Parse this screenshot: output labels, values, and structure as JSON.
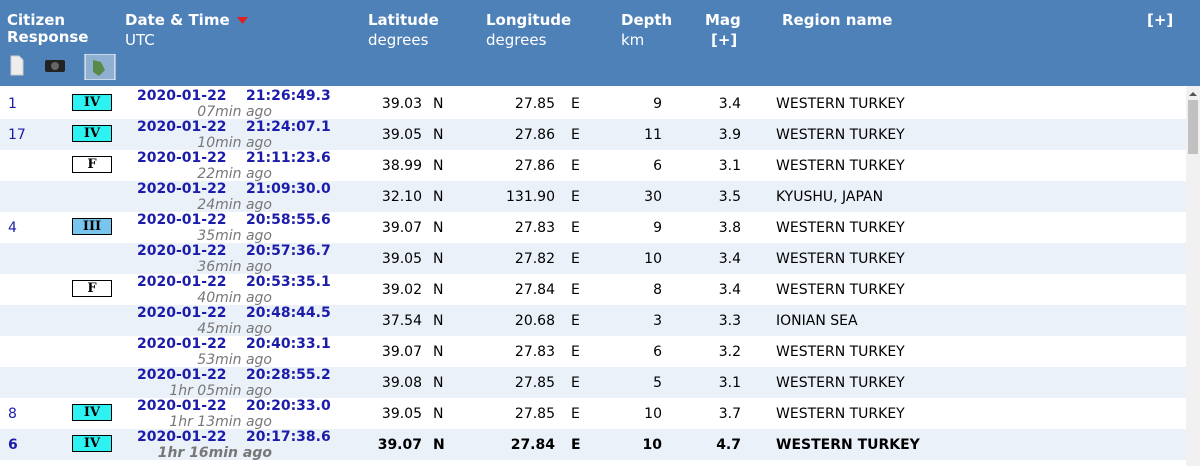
{
  "header": {
    "citizen_response": [
      "Citizen",
      "Response"
    ],
    "date_time": "Date & Time",
    "utc": "UTC",
    "latitude": "Latitude",
    "lat_unit": "degrees",
    "longitude": "Longitude",
    "lon_unit": "degrees",
    "depth": "Depth",
    "depth_unit": "km",
    "mag": "Mag",
    "mag_more": "[+]",
    "region": "Region name",
    "more": "[+]"
  },
  "rows": [
    {
      "responses": "1",
      "intensity": "IV",
      "date": "2020-01-22",
      "time": "21:26:49.3",
      "ago": "07min ago",
      "lat": "39.03",
      "lat_dir": "N",
      "lon": "27.85",
      "lon_dir": "E",
      "depth": "9",
      "mag": "3.4",
      "region": "WESTERN TURKEY"
    },
    {
      "responses": "17",
      "intensity": "IV",
      "date": "2020-01-22",
      "time": "21:24:07.1",
      "ago": "10min ago",
      "lat": "39.05",
      "lat_dir": "N",
      "lon": "27.86",
      "lon_dir": "E",
      "depth": "11",
      "mag": "3.9",
      "region": "WESTERN TURKEY"
    },
    {
      "intensity": "F",
      "date": "2020-01-22",
      "time": "21:11:23.6",
      "ago": "22min ago",
      "lat": "38.99",
      "lat_dir": "N",
      "lon": "27.86",
      "lon_dir": "E",
      "depth": "6",
      "mag": "3.1",
      "region": "WESTERN TURKEY"
    },
    {
      "date": "2020-01-22",
      "time": "21:09:30.0",
      "ago": "24min ago",
      "lat": "32.10",
      "lat_dir": "N",
      "lon": "131.90",
      "lon_dir": "E",
      "depth": "30",
      "mag": "3.5",
      "region": "KYUSHU, JAPAN"
    },
    {
      "responses": "4",
      "intensity": "III",
      "date": "2020-01-22",
      "time": "20:58:55.6",
      "ago": "35min ago",
      "lat": "39.07",
      "lat_dir": "N",
      "lon": "27.83",
      "lon_dir": "E",
      "depth": "9",
      "mag": "3.8",
      "region": "WESTERN TURKEY"
    },
    {
      "date": "2020-01-22",
      "time": "20:57:36.7",
      "ago": "36min ago",
      "lat": "39.05",
      "lat_dir": "N",
      "lon": "27.82",
      "lon_dir": "E",
      "depth": "10",
      "mag": "3.4",
      "region": "WESTERN TURKEY"
    },
    {
      "intensity": "F",
      "date": "2020-01-22",
      "time": "20:53:35.1",
      "ago": "40min ago",
      "lat": "39.02",
      "lat_dir": "N",
      "lon": "27.84",
      "lon_dir": "E",
      "depth": "8",
      "mag": "3.4",
      "region": "WESTERN TURKEY"
    },
    {
      "date": "2020-01-22",
      "time": "20:48:44.5",
      "ago": "45min ago",
      "lat": "37.54",
      "lat_dir": "N",
      "lon": "20.68",
      "lon_dir": "E",
      "depth": "3",
      "mag": "3.3",
      "region": "IONIAN SEA"
    },
    {
      "date": "2020-01-22",
      "time": "20:40:33.1",
      "ago": "53min ago",
      "lat": "39.07",
      "lat_dir": "N",
      "lon": "27.83",
      "lon_dir": "E",
      "depth": "6",
      "mag": "3.2",
      "region": "WESTERN TURKEY"
    },
    {
      "date": "2020-01-22",
      "time": "20:28:55.2",
      "ago": "1hr 05min ago",
      "lat": "39.08",
      "lat_dir": "N",
      "lon": "27.85",
      "lon_dir": "E",
      "depth": "5",
      "mag": "3.1",
      "region": "WESTERN TURKEY"
    },
    {
      "responses": "8",
      "intensity": "IV",
      "date": "2020-01-22",
      "time": "20:20:33.0",
      "ago": "1hr 13min ago",
      "lat": "39.05",
      "lat_dir": "N",
      "lon": "27.85",
      "lon_dir": "E",
      "depth": "10",
      "mag": "3.7",
      "region": "WESTERN TURKEY"
    },
    {
      "responses": "6",
      "intensity": "IV",
      "date": "2020-01-22",
      "time": "20:17:38.6",
      "ago": "1hr 16min ago",
      "lat": "39.07",
      "lat_dir": "N",
      "lon": "27.84",
      "lon_dir": "E",
      "depth": "10",
      "mag": "4.7",
      "region": "WESTERN TURKEY"
    }
  ]
}
